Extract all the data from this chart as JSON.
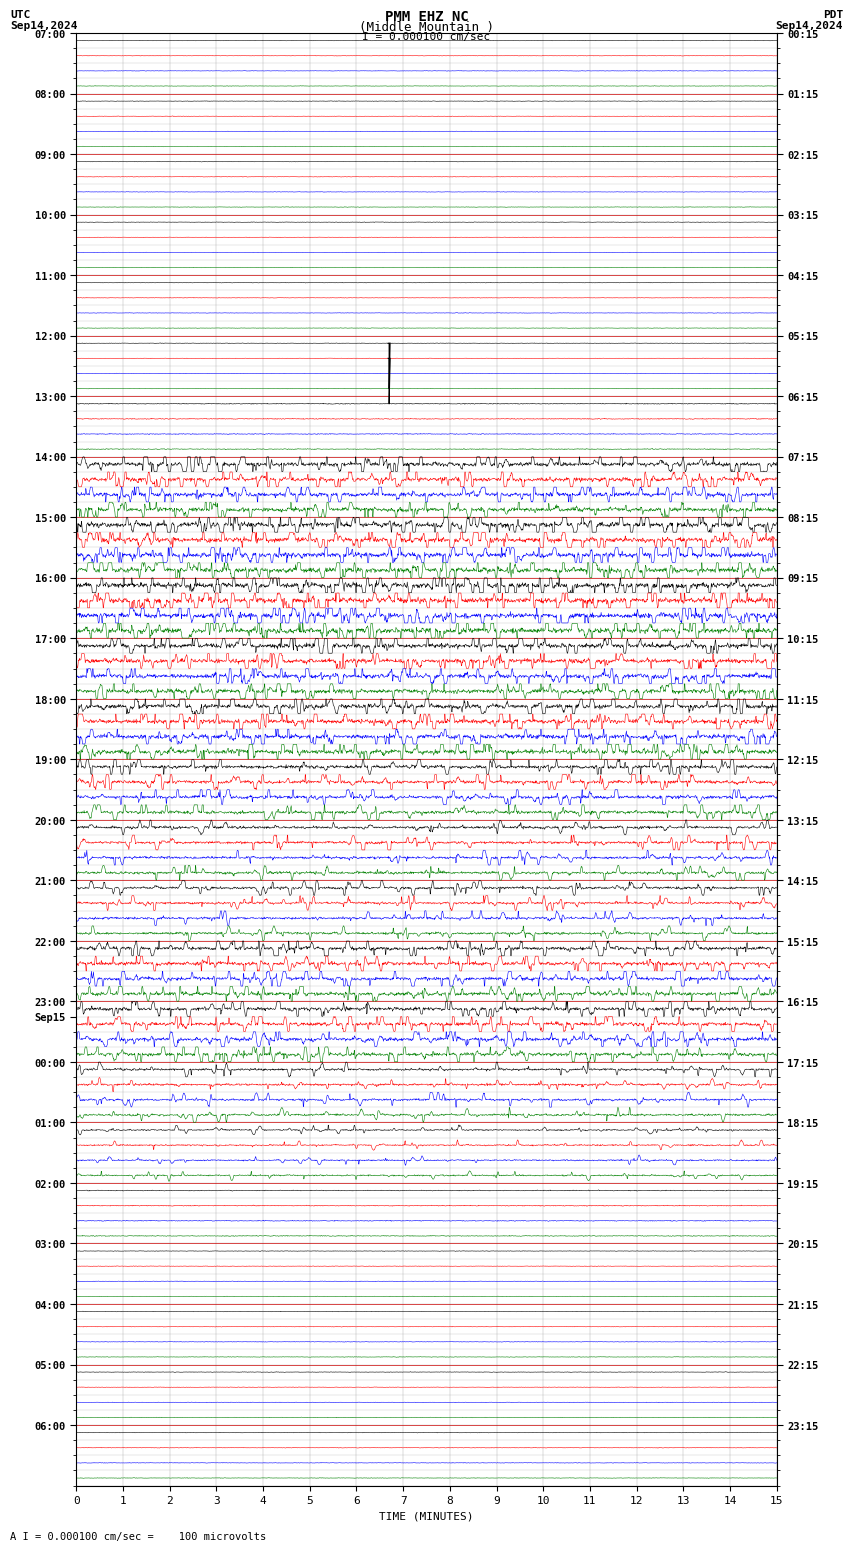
{
  "title_line1": "PMM EHZ NC",
  "title_line2": "(Middle Mountain )",
  "title_scale": "I = 0.000100 cm/sec",
  "top_left_label1": "UTC",
  "top_left_label2": "Sep14,2024",
  "top_right_label1": "PDT",
  "top_right_label2": "Sep14,2024",
  "bottom_label": "A I = 0.000100 cm/sec =    100 microvolts",
  "xlabel": "TIME (MINUTES)",
  "utc_times": [
    "07:00",
    "",
    "",
    "",
    "08:00",
    "",
    "",
    "",
    "09:00",
    "",
    "",
    "",
    "10:00",
    "",
    "",
    "",
    "11:00",
    "",
    "",
    "",
    "12:00",
    "",
    "",
    "",
    "13:00",
    "",
    "",
    "",
    "14:00",
    "",
    "",
    "",
    "15:00",
    "",
    "",
    "",
    "16:00",
    "",
    "",
    "",
    "17:00",
    "",
    "",
    "",
    "18:00",
    "",
    "",
    "",
    "19:00",
    "",
    "",
    "",
    "20:00",
    "",
    "",
    "",
    "21:00",
    "",
    "",
    "",
    "22:00",
    "",
    "",
    "",
    "23:00",
    "Sep15",
    "",
    "",
    "00:00",
    "",
    "",
    "",
    "01:00",
    "",
    "",
    "",
    "02:00",
    "",
    "",
    "",
    "03:00",
    "",
    "",
    "",
    "04:00",
    "",
    "",
    "",
    "05:00",
    "",
    "",
    "",
    "06:00",
    "",
    "",
    ""
  ],
  "pdt_times": [
    "00:15",
    "",
    "",
    "",
    "01:15",
    "",
    "",
    "",
    "02:15",
    "",
    "",
    "",
    "03:15",
    "",
    "",
    "",
    "04:15",
    "",
    "",
    "",
    "05:15",
    "",
    "",
    "",
    "06:15",
    "",
    "",
    "",
    "07:15",
    "",
    "",
    "",
    "08:15",
    "",
    "",
    "",
    "09:15",
    "",
    "",
    "",
    "10:15",
    "",
    "",
    "",
    "11:15",
    "",
    "",
    "",
    "12:15",
    "",
    "",
    "",
    "13:15",
    "",
    "",
    "",
    "14:15",
    "",
    "",
    "",
    "15:15",
    "",
    "",
    "",
    "16:15",
    "",
    "",
    "",
    "17:15",
    "",
    "",
    "",
    "18:15",
    "",
    "",
    "",
    "19:15",
    "",
    "",
    "",
    "20:15",
    "",
    "",
    "",
    "21:15",
    "",
    "",
    "",
    "22:15",
    "",
    "",
    "",
    "23:15",
    "",
    "",
    ""
  ],
  "n_rows": 96,
  "n_minutes": 15,
  "colors": [
    "black",
    "red",
    "blue",
    "green"
  ],
  "bg_color": "#ffffff",
  "row_sep_color": "#aaaaaa",
  "hour_sep_color": "#ff0000",
  "vgrid_color": "#aaaaaa"
}
